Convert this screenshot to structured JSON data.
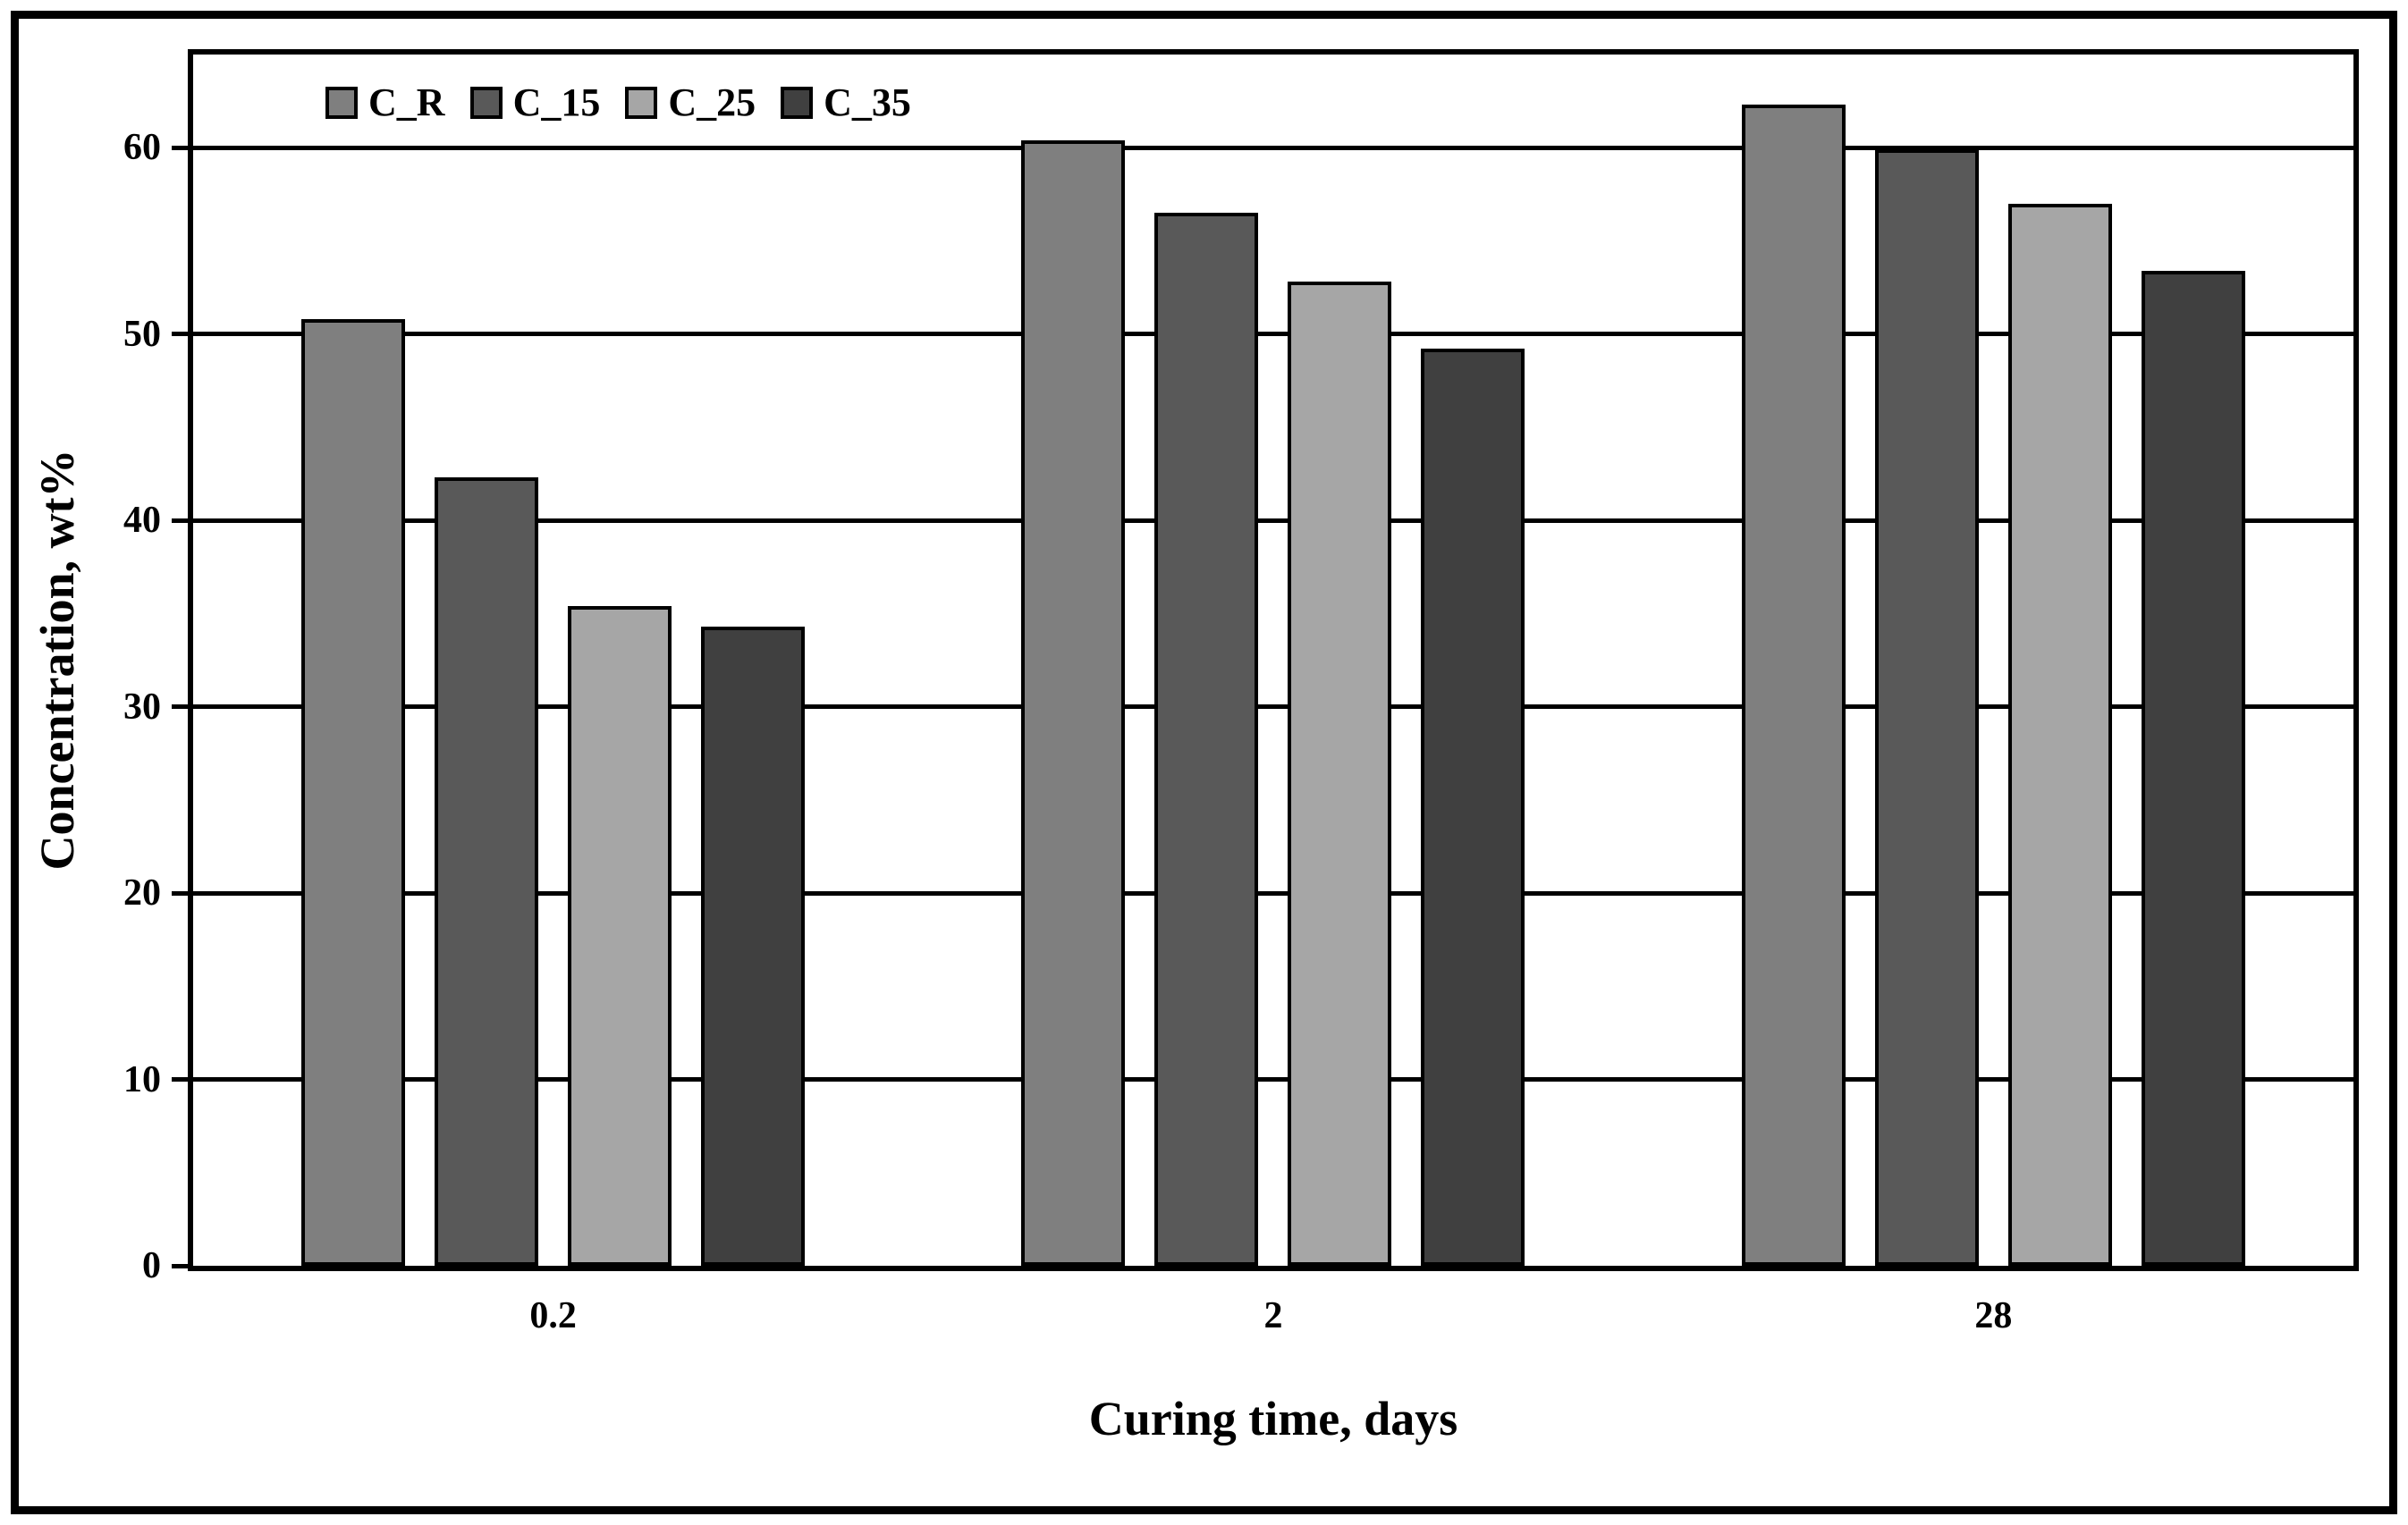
{
  "figure": {
    "background": "#ffffff",
    "border_color": "#000000"
  },
  "chart_data": {
    "type": "bar",
    "title": "",
    "xlabel": "Curing time, days",
    "ylabel": "Concentration, wt%",
    "categories": [
      "0.2",
      "2",
      "28"
    ],
    "series": [
      {
        "name": "C_R",
        "color": "#7f7f7f",
        "values": [
          50.8,
          60.4,
          62.3
        ]
      },
      {
        "name": "C_15",
        "color": "#595959",
        "values": [
          42.3,
          56.5,
          59.9
        ]
      },
      {
        "name": "C_25",
        "color": "#a6a6a6",
        "values": [
          35.4,
          52.8,
          57.0
        ]
      },
      {
        "name": "C_35",
        "color": "#404040",
        "values": [
          34.3,
          49.2,
          53.4
        ]
      }
    ],
    "ylim": [
      0,
      65
    ],
    "yticks": [
      0,
      10,
      20,
      30,
      40,
      50,
      60
    ],
    "grid": "horizontal-only",
    "gridline_color": "#000000",
    "bar_border_color": "#000000",
    "legend_position": "inside-top-left"
  }
}
